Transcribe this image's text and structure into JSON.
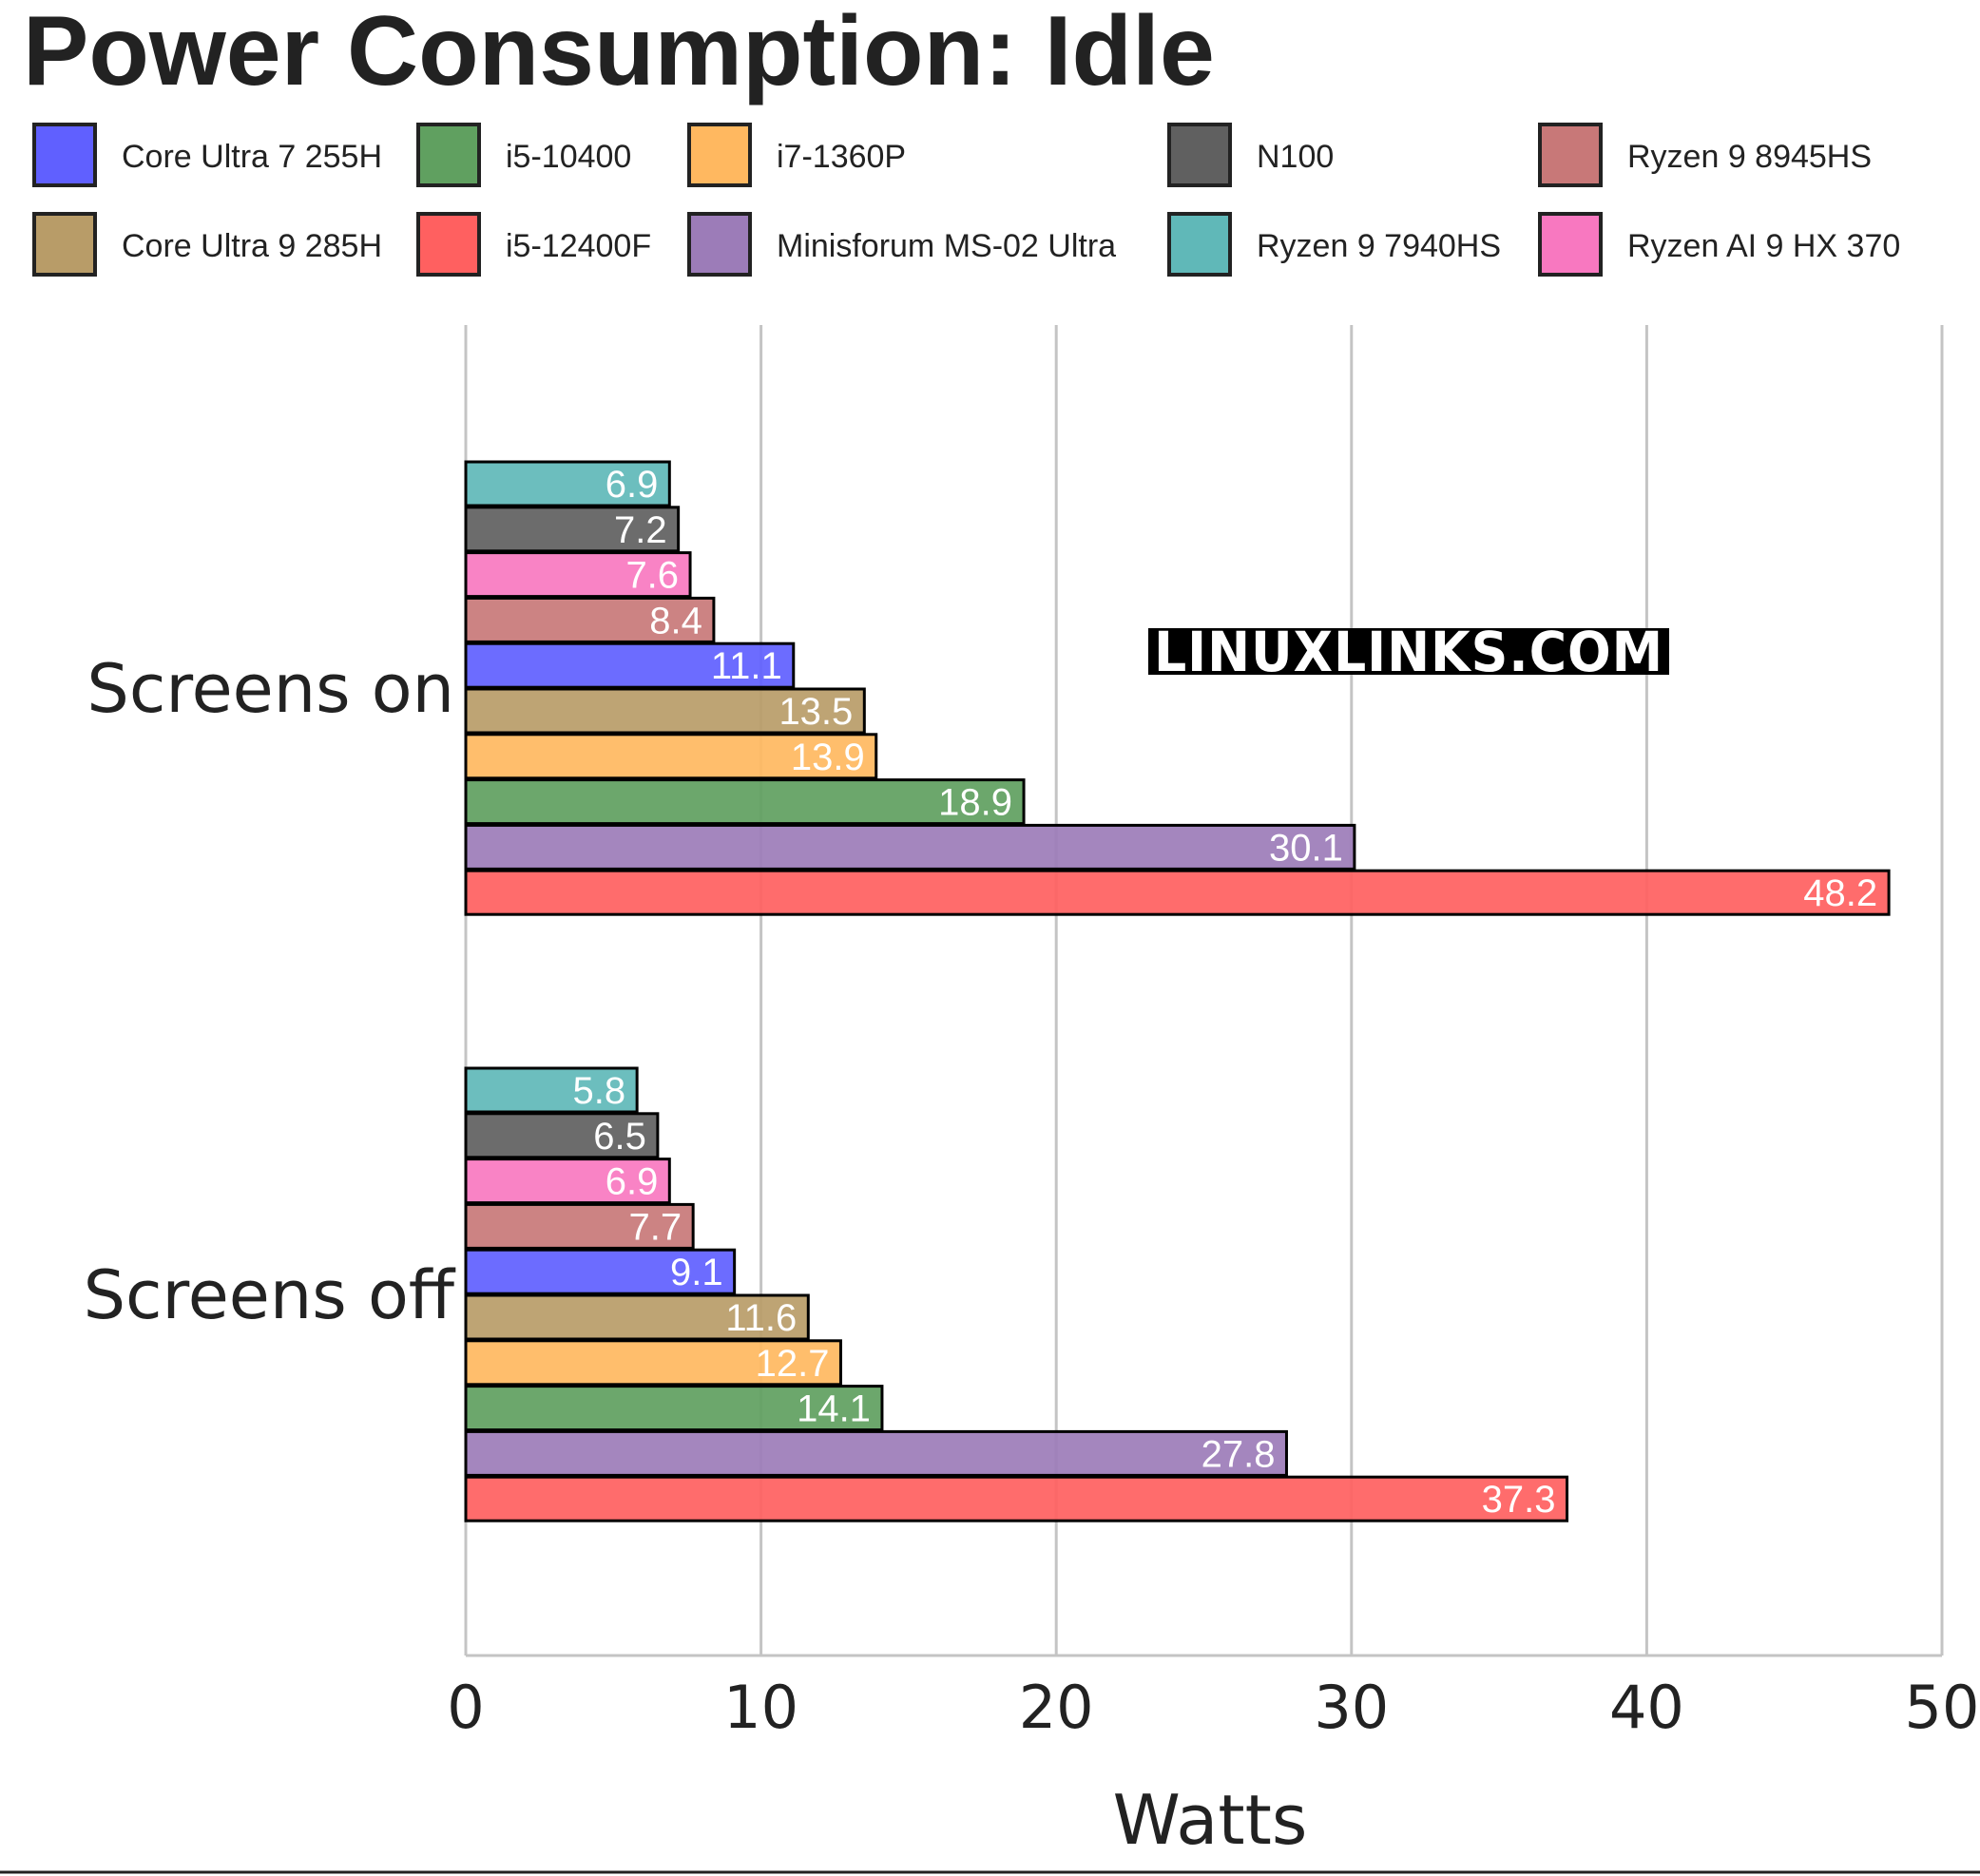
{
  "chart_data": {
    "type": "bar",
    "orientation": "horizontal",
    "title": "Power Consumption: Idle",
    "xlabel": "Watts",
    "ylabel": "",
    "xlim": [
      0,
      50
    ],
    "xticks": [
      "0",
      "10",
      "20",
      "30",
      "40",
      "50"
    ],
    "categories": [
      "Screens on",
      "Screens off"
    ],
    "grid": "vertical",
    "legend_position": "top",
    "watermark": "LINUXLINKS.COM",
    "legend": [
      {
        "name": "Core Ultra 7 255H",
        "color": "#6060ff"
      },
      {
        "name": "i5-10400",
        "color": "#60a060"
      },
      {
        "name": "i7-1360P",
        "color": "#ffb860"
      },
      {
        "name": "N100",
        "color": "#606060"
      },
      {
        "name": "Ryzen 9 8945HS",
        "color": "#c87878"
      },
      {
        "name": "Core Ultra 9 285H",
        "color": "#b89c68"
      },
      {
        "name": "i5-12400F",
        "color": "#ff6060"
      },
      {
        "name": "Minisforum MS-02 Ultra",
        "color": "#9c7cb8"
      },
      {
        "name": "Ryzen 9 7940HS",
        "color": "#60b8b8"
      },
      {
        "name": "Ryzen AI 9 HX 370",
        "color": "#f878c0"
      }
    ],
    "series_order": [
      "Ryzen 9 7940HS",
      "N100",
      "Ryzen AI 9 HX 370",
      "Ryzen 9 8945HS",
      "Core Ultra 7 255H",
      "Core Ultra 9 285H",
      "i7-1360P",
      "i5-10400",
      "Minisforum MS-02 Ultra",
      "i5-12400F"
    ],
    "groups": [
      {
        "category": "Screens on",
        "bars": [
          {
            "series": "Ryzen 9 7940HS",
            "value": 6.9,
            "label": "6.9"
          },
          {
            "series": "N100",
            "value": 7.2,
            "label": "7.2"
          },
          {
            "series": "Ryzen AI 9 HX 370",
            "value": 7.6,
            "label": "7.6"
          },
          {
            "series": "Ryzen 9 8945HS",
            "value": 8.4,
            "label": "8.4"
          },
          {
            "series": "Core Ultra 7 255H",
            "value": 11.1,
            "label": "11.1"
          },
          {
            "series": "Core Ultra 9 285H",
            "value": 13.5,
            "label": "13.5"
          },
          {
            "series": "i7-1360P",
            "value": 13.9,
            "label": "13.9"
          },
          {
            "series": "i5-10400",
            "value": 18.9,
            "label": "18.9"
          },
          {
            "series": "Minisforum MS-02 Ultra",
            "value": 30.1,
            "label": "30.1"
          },
          {
            "series": "i5-12400F",
            "value": 48.2,
            "label": "48.2"
          }
        ]
      },
      {
        "category": "Screens off",
        "bars": [
          {
            "series": "Ryzen 9 7940HS",
            "value": 5.8,
            "label": "5.8"
          },
          {
            "series": "N100",
            "value": 6.5,
            "label": "6.5"
          },
          {
            "series": "Ryzen AI 9 HX 370",
            "value": 6.9,
            "label": "6.9"
          },
          {
            "series": "Ryzen 9 8945HS",
            "value": 7.7,
            "label": "7.7"
          },
          {
            "series": "Core Ultra 7 255H",
            "value": 9.1,
            "label": "9.1"
          },
          {
            "series": "Core Ultra 9 285H",
            "value": 11.6,
            "label": "11.6"
          },
          {
            "series": "i7-1360P",
            "value": 12.7,
            "label": "12.7"
          },
          {
            "series": "i5-10400",
            "value": 14.1,
            "label": "14.1"
          },
          {
            "series": "Minisforum MS-02 Ultra",
            "value": 27.8,
            "label": "27.8"
          },
          {
            "series": "i5-12400F",
            "value": 37.3,
            "label": "37.3"
          }
        ]
      }
    ]
  }
}
